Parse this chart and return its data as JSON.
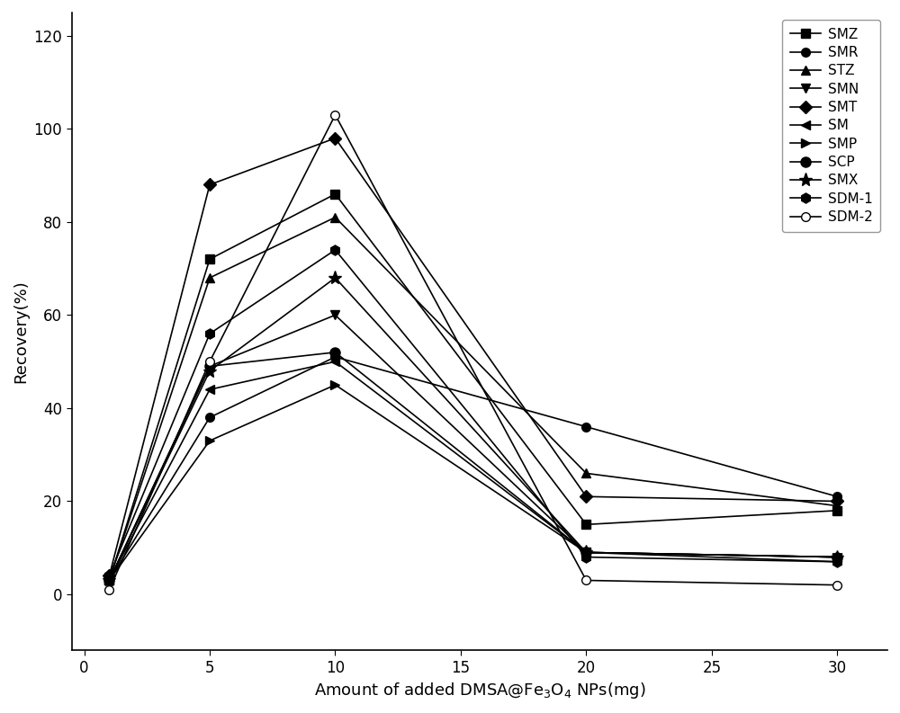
{
  "x": [
    1,
    5,
    10,
    20,
    30
  ],
  "series": [
    {
      "label": "SMZ",
      "marker": "s",
      "markersize": 7,
      "linewidth": 1.2,
      "values": [
        3,
        72,
        86,
        15,
        18
      ]
    },
    {
      "label": "SMR",
      "marker": "o",
      "markersize": 7,
      "linewidth": 1.2,
      "values": [
        3,
        38,
        51,
        36,
        21
      ]
    },
    {
      "label": "STZ",
      "marker": "^",
      "markersize": 7,
      "linewidth": 1.2,
      "values": [
        3,
        68,
        81,
        26,
        19
      ]
    },
    {
      "label": "SMN",
      "marker": "v",
      "markersize": 7,
      "linewidth": 1.2,
      "values": [
        3,
        49,
        60,
        9,
        7
      ]
    },
    {
      "label": "SMT",
      "marker": "D",
      "markersize": 7,
      "linewidth": 1.2,
      "values": [
        4,
        88,
        98,
        21,
        20
      ]
    },
    {
      "label": "SM",
      "marker": "<",
      "markersize": 7,
      "linewidth": 1.2,
      "values": [
        3,
        44,
        50,
        9,
        8
      ]
    },
    {
      "label": "SMP",
      "marker": ">",
      "markersize": 7,
      "linewidth": 1.2,
      "values": [
        3,
        33,
        45,
        9,
        8
      ]
    },
    {
      "label": "SCP",
      "marker": "o",
      "markersize": 8,
      "linewidth": 1.2,
      "values": [
        3,
        49,
        52,
        9,
        8
      ]
    },
    {
      "label": "SMX",
      "marker": "*",
      "markersize": 11,
      "linewidth": 1.2,
      "values": [
        3,
        48,
        68,
        9,
        8
      ]
    },
    {
      "label": "SDM-1",
      "marker": "h",
      "markersize": 8,
      "linewidth": 1.2,
      "values": [
        4,
        56,
        74,
        8,
        7
      ]
    },
    {
      "label": "SDM-2",
      "marker": "o",
      "markersize": 7,
      "linewidth": 1.2,
      "values": [
        1,
        50,
        103,
        3,
        2
      ]
    }
  ],
  "xlabel": "Amount of added DMSA@Fe$_3$O$_4$ NPs(mg)",
  "ylabel": "Recovery(%)",
  "xlim": [
    -0.5,
    32
  ],
  "ylim": [
    -12,
    125
  ],
  "xticks": [
    0,
    5,
    10,
    15,
    20,
    25,
    30
  ],
  "yticks": [
    0,
    20,
    40,
    60,
    80,
    100,
    120
  ],
  "line_color": "#000000",
  "background_color": "#ffffff",
  "legend_fontsize": 11,
  "axis_fontsize": 13,
  "tick_fontsize": 12
}
